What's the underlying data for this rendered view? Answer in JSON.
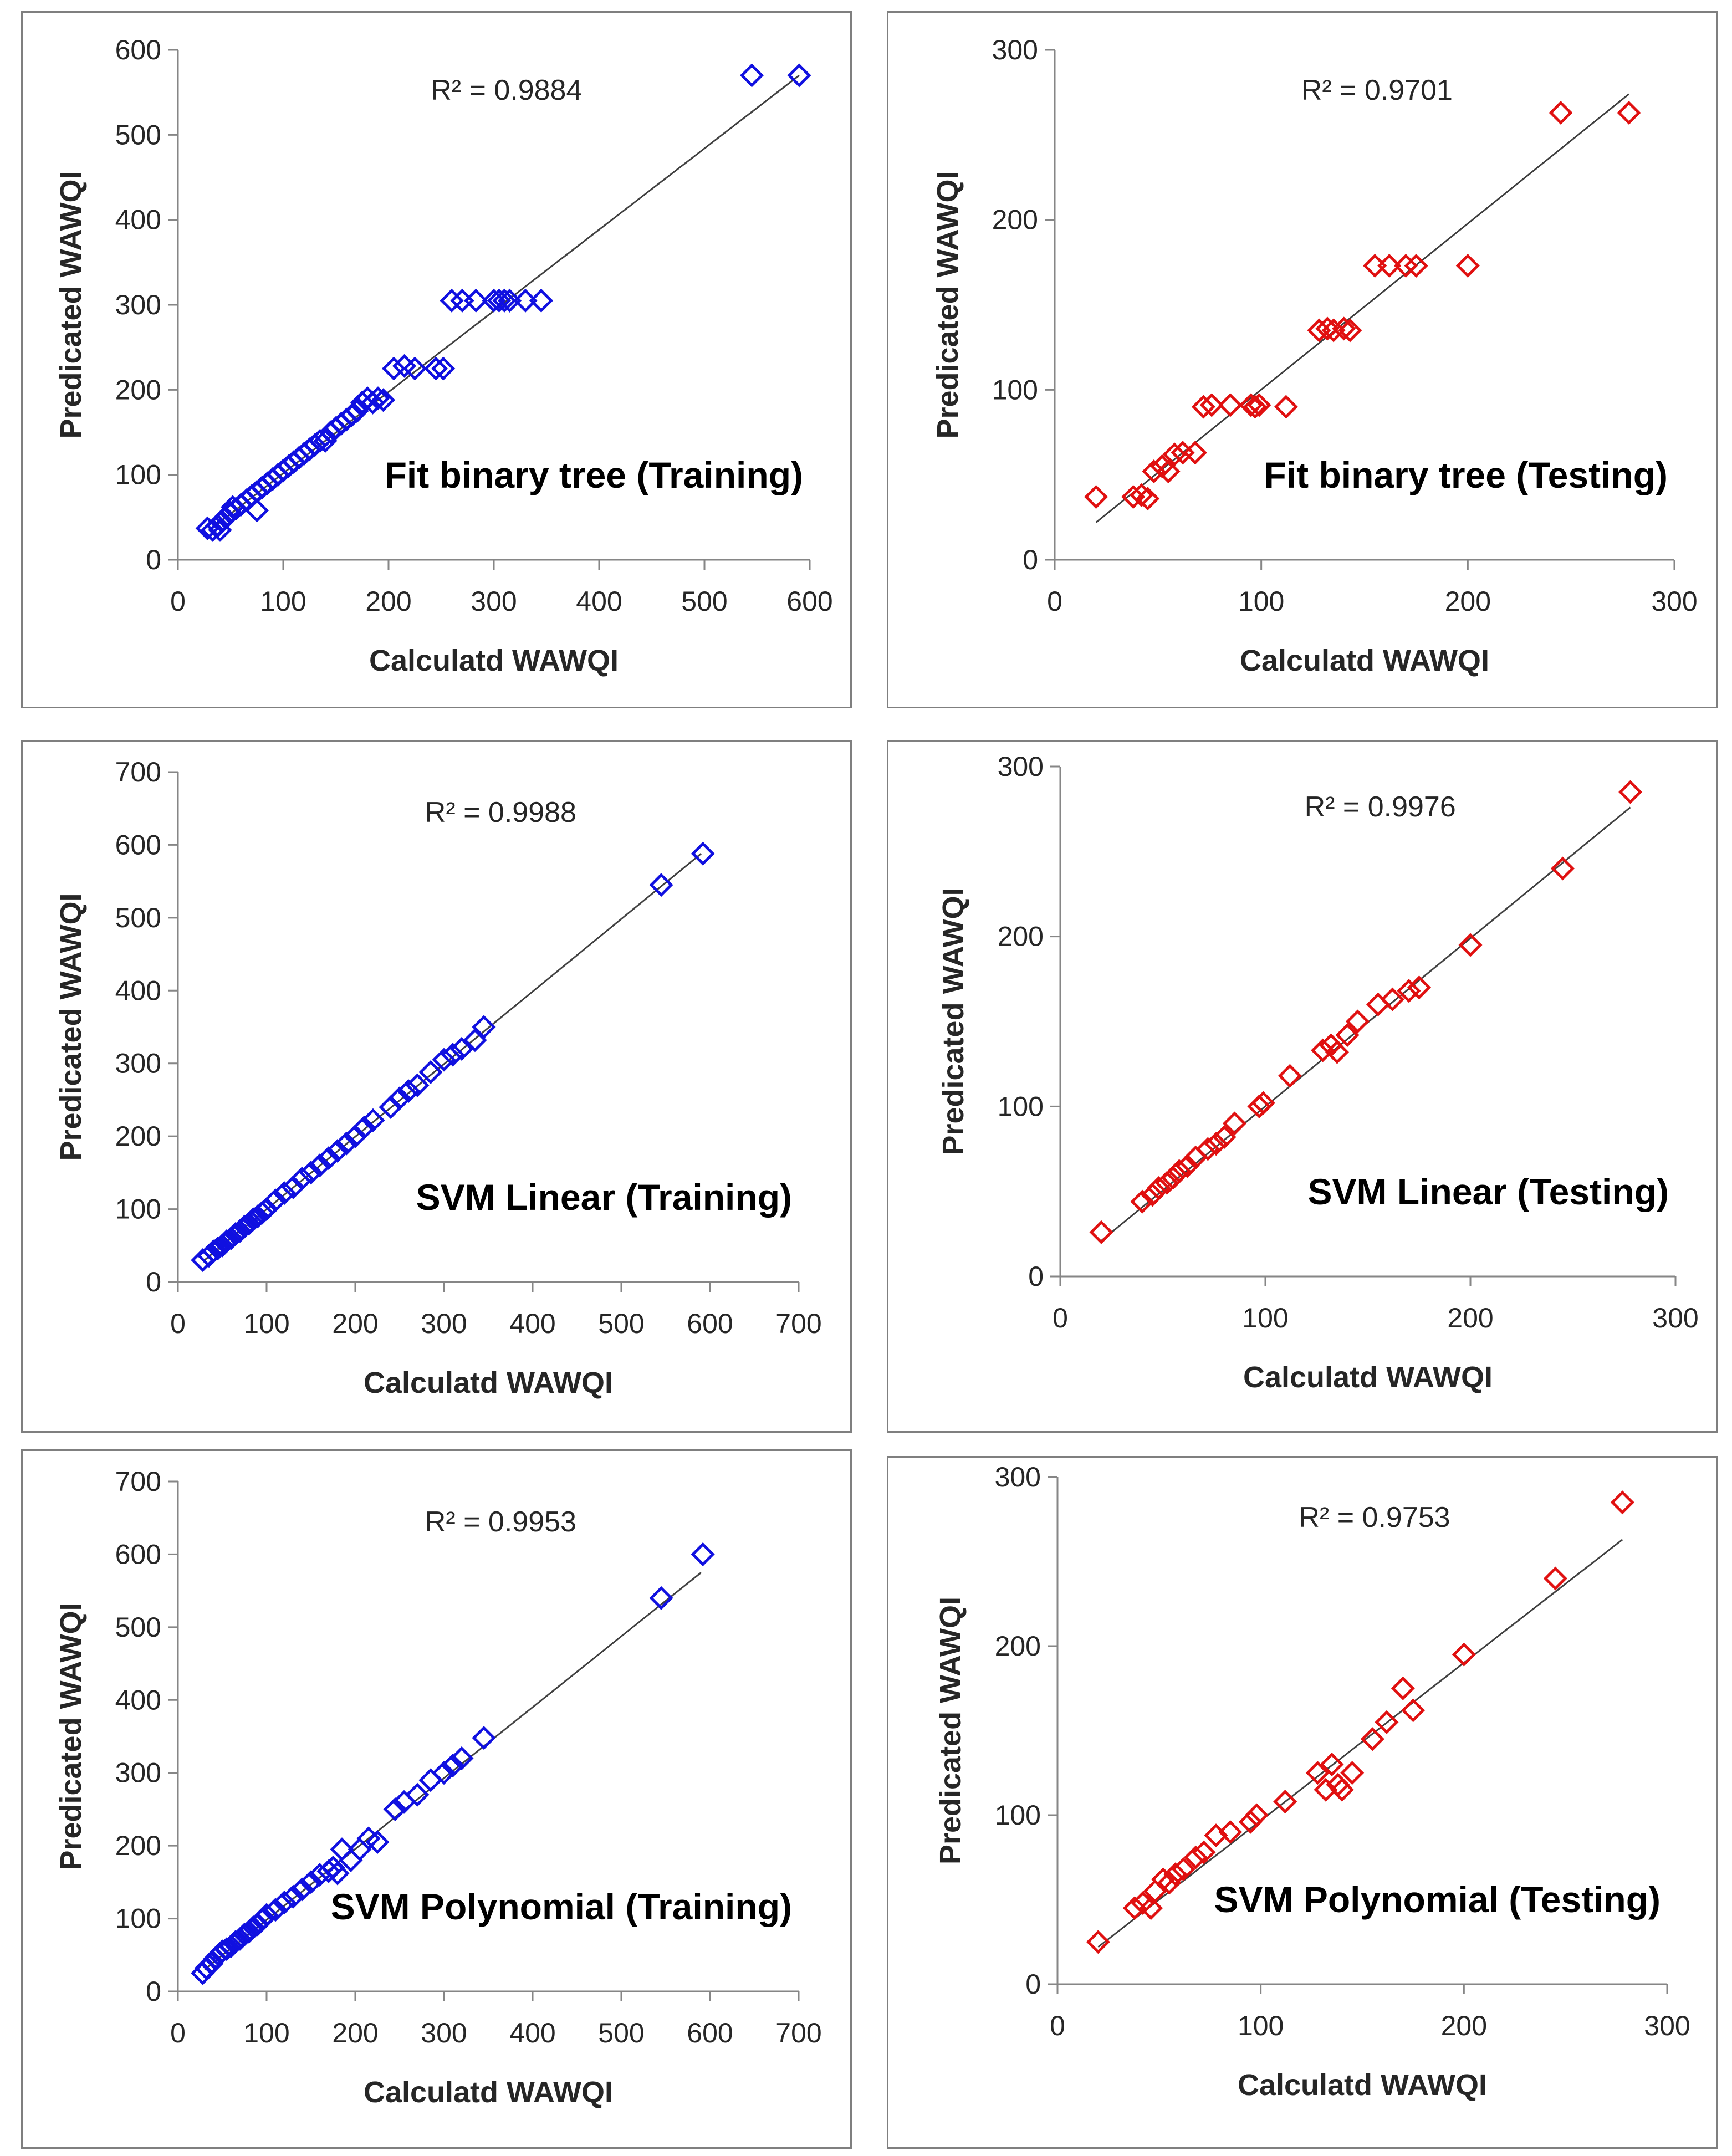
{
  "colors": {
    "training": "#1010e0",
    "testing": "#e01010",
    "axis": "#868686",
    "trend": "#404040"
  },
  "chart_data": [
    {
      "type": "scatter",
      "title": "Fit binary tree (Training)",
      "xlabel": "Calculatd WAWQI",
      "ylabel": "Predicated WAWQI",
      "r2_label": "R² = 0.9884",
      "xlim": [
        0,
        600
      ],
      "ylim": [
        0,
        600
      ],
      "xticks": [
        0,
        100,
        200,
        300,
        400,
        500,
        600
      ],
      "yticks": [
        0,
        100,
        200,
        300,
        400,
        500,
        600
      ],
      "trendline": {
        "x": [
          30,
          590
        ],
        "y": [
          35,
          570
        ]
      },
      "series": [
        {
          "name": "Training",
          "color": "#1010e0",
          "x": [
            28,
            33,
            38,
            42,
            45,
            50,
            55,
            60,
            65,
            70,
            75,
            80,
            85,
            90,
            95,
            100,
            105,
            110,
            115,
            120,
            125,
            130,
            135,
            140,
            145,
            150,
            155,
            160,
            165,
            170,
            175,
            180,
            185,
            190,
            195,
            205,
            215,
            225,
            245,
            252,
            260,
            270,
            283,
            300,
            305,
            310,
            315,
            330,
            345,
            545,
            590,
            75,
            40,
            52
          ],
          "y": [
            37,
            35,
            40,
            45,
            50,
            55,
            60,
            65,
            70,
            75,
            80,
            85,
            90,
            95,
            100,
            105,
            110,
            115,
            120,
            125,
            130,
            135,
            140,
            140,
            150,
            155,
            160,
            165,
            170,
            175,
            185,
            190,
            185,
            190,
            188,
            225,
            228,
            225,
            225,
            225,
            305,
            305,
            305,
            305,
            305,
            305,
            305,
            305,
            305,
            570,
            570,
            58,
            35,
            62
          ]
        }
      ]
    },
    {
      "type": "scatter",
      "title": "Fit binary tree (Testing)",
      "xlabel": "Calculatd WAWQI",
      "ylabel": "Predicated WAWQI",
      "r2_label": "R² = 0.9701",
      "xlim": [
        0,
        300
      ],
      "ylim": [
        0,
        300
      ],
      "xticks": [
        0,
        100,
        200,
        300
      ],
      "yticks": [
        0,
        100,
        200,
        300
      ],
      "trendline": {
        "x": [
          20,
          278
        ],
        "y": [
          22,
          274
        ]
      },
      "series": [
        {
          "name": "Testing",
          "color": "#e01010",
          "x": [
            20,
            38,
            42,
            45,
            48,
            52,
            55,
            58,
            62,
            68,
            72,
            76,
            85,
            95,
            97,
            99,
            112,
            128,
            132,
            135,
            140,
            143,
            155,
            162,
            170,
            175,
            200,
            245,
            278
          ],
          "y": [
            37,
            37,
            38,
            36,
            52,
            55,
            52,
            62,
            63,
            63,
            90,
            91,
            91,
            91,
            90,
            91,
            90,
            135,
            136,
            135,
            136,
            135,
            173,
            173,
            173,
            173,
            173,
            263,
            263
          ]
        }
      ]
    },
    {
      "type": "scatter",
      "title": "SVM Linear (Training)",
      "xlabel": "Calculatd WAWQI",
      "ylabel": "Predicated WAWQI",
      "r2_label": "R² = 0.9988",
      "xlim": [
        0,
        700
      ],
      "ylim": [
        0,
        700
      ],
      "xticks": [
        0,
        100,
        200,
        300,
        400,
        500,
        600,
        700
      ],
      "yticks": [
        0,
        100,
        200,
        300,
        400,
        500,
        600,
        700
      ],
      "trendline": {
        "x": [
          30,
          590
        ],
        "y": [
          30,
          588
        ]
      },
      "series": [
        {
          "name": "Training",
          "color": "#1010e0",
          "x": [
            28,
            35,
            40,
            45,
            50,
            55,
            60,
            65,
            70,
            75,
            80,
            85,
            90,
            95,
            100,
            110,
            120,
            130,
            140,
            150,
            160,
            170,
            180,
            190,
            200,
            210,
            220,
            240,
            250,
            260,
            270,
            285,
            300,
            310,
            320,
            335,
            345,
            545,
            592
          ],
          "y": [
            30,
            36,
            42,
            46,
            50,
            56,
            60,
            66,
            70,
            76,
            80,
            86,
            90,
            95,
            100,
            112,
            122,
            130,
            142,
            150,
            160,
            170,
            180,
            190,
            200,
            212,
            222,
            240,
            252,
            262,
            270,
            288,
            305,
            312,
            320,
            332,
            350,
            545,
            588
          ]
        }
      ]
    },
    {
      "type": "scatter",
      "title": "SVM Linear (Testing)",
      "xlabel": "Calculatd WAWQI",
      "ylabel": "Predicated WAWQI",
      "r2_label": "R² = 0.9976",
      "xlim": [
        0,
        300
      ],
      "ylim": [
        0,
        300
      ],
      "xticks": [
        0,
        100,
        200,
        300
      ],
      "yticks": [
        0,
        100,
        200,
        300
      ],
      "trendline": {
        "x": [
          20,
          278
        ],
        "y": [
          21,
          276
        ]
      },
      "series": [
        {
          "name": "Testing",
          "color": "#e01010",
          "x": [
            20,
            40,
            45,
            48,
            52,
            55,
            58,
            62,
            66,
            72,
            76,
            80,
            85,
            97,
            99,
            112,
            128,
            132,
            135,
            140,
            145,
            155,
            162,
            170,
            175,
            200,
            245,
            278
          ],
          "y": [
            26,
            44,
            48,
            52,
            55,
            58,
            62,
            65,
            70,
            75,
            78,
            82,
            90,
            100,
            102,
            118,
            133,
            136,
            132,
            142,
            150,
            160,
            163,
            168,
            170,
            195,
            240,
            285
          ]
        }
      ]
    },
    {
      "type": "scatter",
      "title": "SVM Polynomial  (Training)",
      "xlabel": "Calculatd WAWQI",
      "ylabel": "Predicated WAWQI",
      "r2_label": "R² = 0.9953",
      "xlim": [
        0,
        700
      ],
      "ylim": [
        0,
        700
      ],
      "xticks": [
        0,
        100,
        200,
        300,
        400,
        500,
        600,
        700
      ],
      "yticks": [
        0,
        100,
        200,
        300,
        400,
        500,
        600,
        700
      ],
      "trendline": {
        "x": [
          30,
          590
        ],
        "y": [
          30,
          575
        ]
      },
      "series": [
        {
          "name": "Training",
          "color": "#1010e0",
          "x": [
            28,
            32,
            38,
            42,
            46,
            50,
            55,
            60,
            65,
            70,
            75,
            80,
            85,
            90,
            95,
            100,
            110,
            120,
            130,
            140,
            150,
            160,
            170,
            175,
            180,
            185,
            195,
            205,
            215,
            225,
            245,
            255,
            270,
            285,
            300,
            310,
            320,
            345,
            545,
            592
          ],
          "y": [
            25,
            32,
            38,
            45,
            50,
            55,
            58,
            62,
            68,
            72,
            78,
            82,
            88,
            92,
            98,
            105,
            112,
            122,
            130,
            140,
            150,
            160,
            165,
            170,
            162,
            195,
            180,
            195,
            210,
            205,
            250,
            260,
            270,
            290,
            300,
            310,
            320,
            348,
            540,
            600
          ]
        }
      ]
    },
    {
      "type": "scatter",
      "title": "SVM Polynomial  (Testing)",
      "xlabel": "Calculatd WAWQI",
      "ylabel": "Predicated WAWQI",
      "r2_label": "R² = 0.9753",
      "xlim": [
        0,
        300
      ],
      "ylim": [
        0,
        300
      ],
      "xticks": [
        0,
        100,
        200,
        300
      ],
      "yticks": [
        0,
        100,
        200,
        300
      ],
      "trendline": {
        "x": [
          20,
          278
        ],
        "y": [
          22,
          263
        ]
      },
      "series": [
        {
          "name": "Testing",
          "color": "#e01010",
          "x": [
            20,
            38,
            42,
            46,
            48,
            52,
            55,
            58,
            62,
            68,
            72,
            78,
            85,
            95,
            98,
            112,
            128,
            132,
            135,
            138,
            140,
            145,
            155,
            162,
            170,
            175,
            200,
            245,
            278
          ],
          "y": [
            25,
            45,
            48,
            45,
            55,
            62,
            60,
            65,
            68,
            75,
            78,
            88,
            90,
            96,
            100,
            108,
            125,
            115,
            130,
            118,
            115,
            125,
            145,
            155,
            175,
            162,
            195,
            240,
            285
          ]
        }
      ]
    }
  ]
}
